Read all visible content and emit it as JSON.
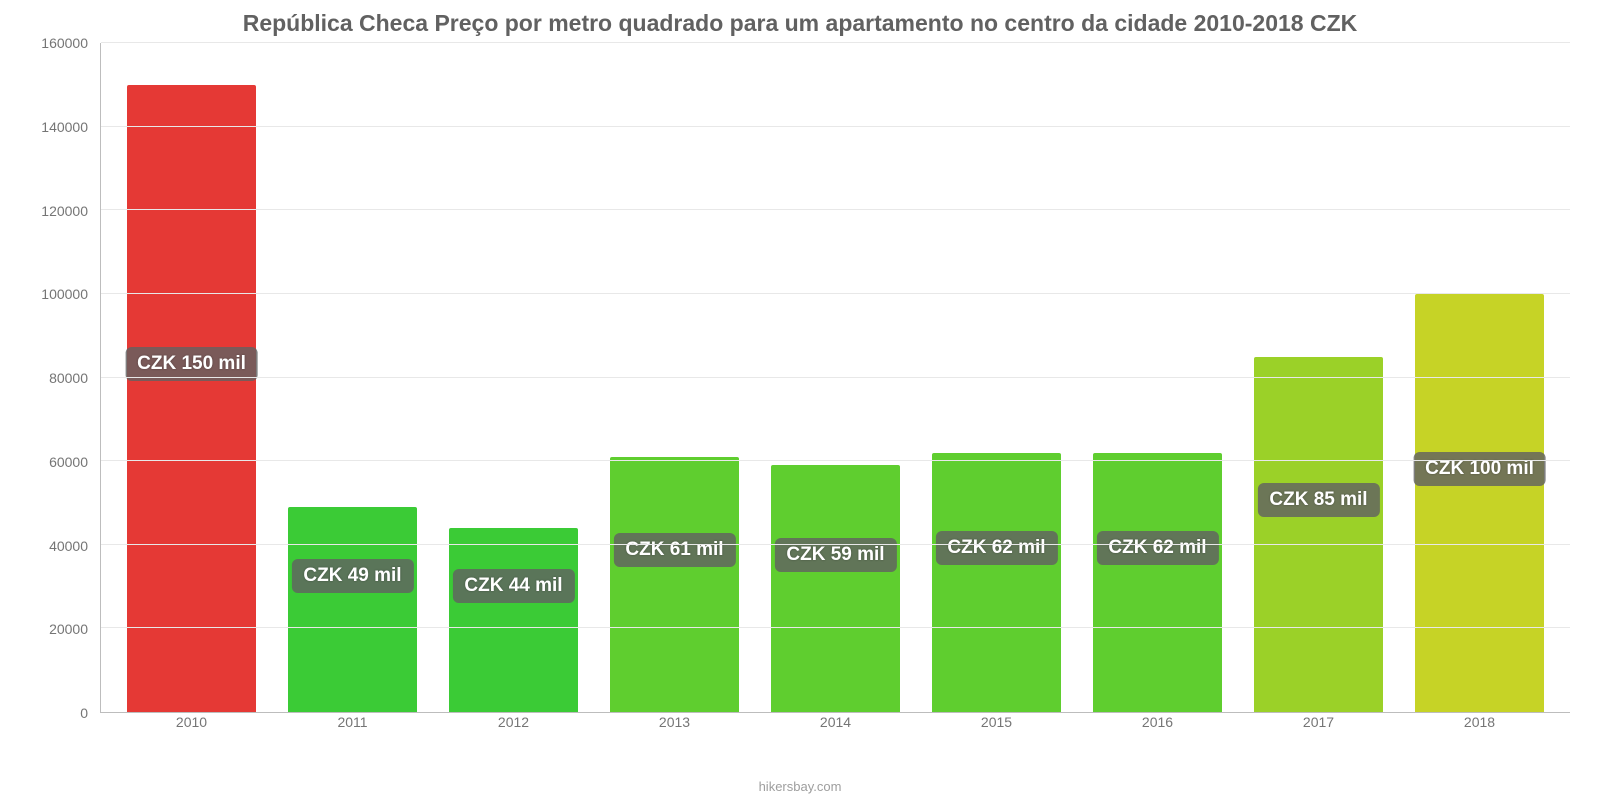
{
  "chart": {
    "type": "bar",
    "title": "República Checa Preço por metro quadrado para um apartamento no centro da cidade 2010-2018 CZK",
    "title_fontsize": 23,
    "title_color": "#616161",
    "footer": "hikersbay.com",
    "footer_fontsize": 13,
    "footer_color": "#9e9e9e",
    "background_color": "#ffffff",
    "grid_color": "#e8e8e8",
    "axis_color": "#bdbdbd",
    "tick_color": "#757575",
    "tick_fontsize": 14,
    "bar_label_bg": "rgba(97,97,97,0.82)",
    "bar_label_color": "#ffffff",
    "bar_label_fontsize": 19,
    "ylim": [
      0,
      160000
    ],
    "ytick_step": 20000,
    "yticks": [
      0,
      20000,
      40000,
      60000,
      80000,
      100000,
      120000,
      140000,
      160000
    ],
    "bar_width_pct": 80,
    "categories": [
      "2010",
      "2011",
      "2012",
      "2013",
      "2014",
      "2015",
      "2016",
      "2017",
      "2018"
    ],
    "values": [
      150000,
      49000,
      44000,
      61000,
      59000,
      62000,
      62000,
      85000,
      100000
    ],
    "bar_colors": [
      "#e53935",
      "#3bcb36",
      "#3bcb36",
      "#5fce2f",
      "#5fce2f",
      "#5fce2f",
      "#5fce2f",
      "#9bd128",
      "#c6d326"
    ],
    "value_labels": [
      "CZK 150 mil",
      "CZK 49 mil",
      "CZK 44 mil",
      "CZK 61 mil",
      "CZK 59 mil",
      "CZK 62 mil",
      "CZK 62 mil",
      "CZK 85 mil",
      "CZK 100 mil"
    ]
  }
}
